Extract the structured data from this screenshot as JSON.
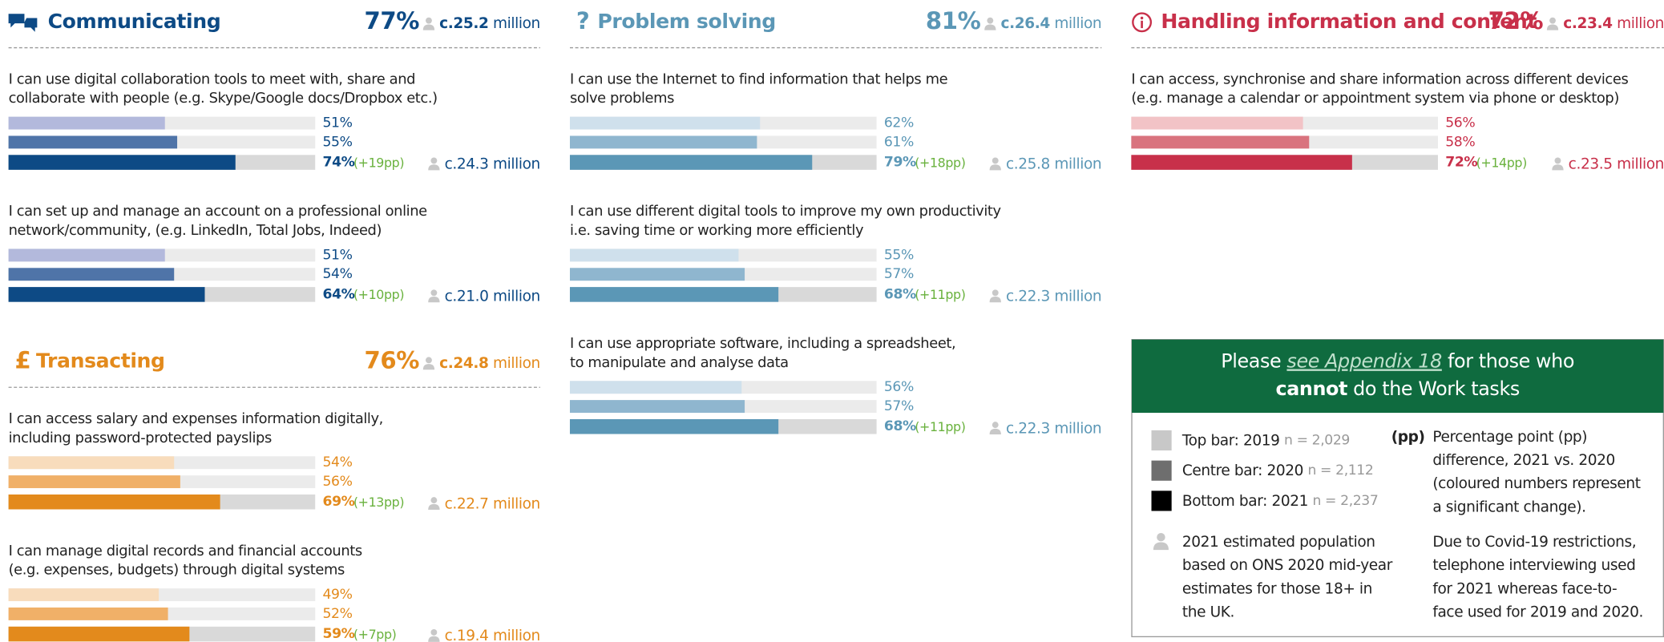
{
  "xlim": [
    0,
    100
  ],
  "sections": [
    {
      "title": "Communicating",
      "percent": "77%",
      "population": "c.25.2",
      "unit": "million",
      "color": "#0d4a85",
      "label_color": "#0d4a85",
      "bar_colors": [
        "#b3b9dc",
        "#4f74a8",
        "#0d4a85"
      ],
      "items": [
        {
          "label_lines": [
            "I can use digital collaboration tools to meet with, share and",
            "collaborate with people (e.g. Skype/Google docs/Dropbox etc.)"
          ],
          "values": [
            51,
            55,
            74
          ],
          "value_labels": [
            "51%",
            "55%",
            "74%"
          ],
          "change": "(+19pp)",
          "population": "c.24.3 million"
        },
        {
          "label_lines": [
            "I can set up and manage an account on a professional online",
            "network/community, (e.g. LinkedIn, Total Jobs, Indeed)"
          ],
          "values": [
            51,
            54,
            64
          ],
          "value_labels": [
            "51%",
            "54%",
            "64%"
          ],
          "change": "(+10pp)",
          "population": "c.21.0 million"
        }
      ]
    },
    {
      "title": "Transacting",
      "icon": "£",
      "percent": "76%",
      "population": "c.24.8",
      "unit": "million",
      "color": "#e38a1c",
      "label_color": "#e38a1c",
      "bar_colors": [
        "#f8dcbc",
        "#f0b068",
        "#e38a1c"
      ],
      "items": [
        {
          "label_lines": [
            "I can access salary and expenses information digitally,",
            "including password-protected payslips"
          ],
          "values": [
            54,
            56,
            69
          ],
          "value_labels": [
            "54%",
            "56%",
            "69%"
          ],
          "change": "(+13pp)",
          "population": "c.22.7 million"
        },
        {
          "label_lines": [
            "I can manage digital records and financial accounts",
            "(e.g. expenses, budgets) through digital systems"
          ],
          "values": [
            49,
            52,
            59
          ],
          "value_labels": [
            "49%",
            "52%",
            "59%"
          ],
          "change": "(+7pp)",
          "population": "c.19.4 million"
        }
      ]
    },
    {
      "title": "Problem solving",
      "icon": "?",
      "percent": "81%",
      "population": "c.26.4",
      "unit": "million",
      "color": "#5b97b6",
      "label_color": "#5b97b6",
      "bar_colors": [
        "#cfe0ec",
        "#8fb6cf",
        "#5b97b6"
      ],
      "items": [
        {
          "label_lines": [
            "I can use the Internet to find information that helps me",
            "solve problems"
          ],
          "values": [
            62,
            61,
            79
          ],
          "value_labels": [
            "62%",
            "61%",
            "79%"
          ],
          "change": "(+18pp)",
          "population": "c.25.8 million"
        },
        {
          "label_lines": [
            "I can use different digital tools to improve my own productivity",
            "i.e. saving time or working more efficiently"
          ],
          "values": [
            55,
            57,
            68
          ],
          "value_labels": [
            "55%",
            "57%",
            "68%"
          ],
          "change": "(+11pp)",
          "population": "c.22.3 million"
        },
        {
          "label_lines": [
            "I can use appropriate software, including a spreadsheet,",
            "to manipulate and analyse data"
          ],
          "values": [
            56,
            57,
            68
          ],
          "value_labels": [
            "56%",
            "57%",
            "68%"
          ],
          "change": "(+11pp)",
          "population": "c.22.3 million"
        }
      ]
    },
    {
      "title": "Handling information and content",
      "percent": "72%",
      "population": "c.23.4",
      "unit": "million",
      "color": "#c8304a",
      "label_color": "#c8304a",
      "bar_colors": [
        "#f2c3c6",
        "#d9737e",
        "#c8304a"
      ],
      "items": [
        {
          "label_lines": [
            "I can access, synchronise and share information across different devices",
            "(e.g. manage a calendar or appointment system via phone or desktop)"
          ],
          "values": [
            56,
            58,
            72
          ],
          "value_labels": [
            "56%",
            "58%",
            "72%"
          ],
          "change": "(+14pp)",
          "population": "c.23.5 million"
        }
      ]
    }
  ],
  "legend": {
    "note_parts": [
      "Please ",
      "see Appendix 18",
      " for those who",
      "cannot",
      " do the Work tasks"
    ],
    "bars": [
      {
        "label": "Top bar: 2019",
        "n": "n = 2,029",
        "color": "#c8c8c8"
      },
      {
        "label": "Centre bar: 2020",
        "n": "n = 2,112",
        "color": "#6e6e6e"
      },
      {
        "label": "Bottom bar: 2021",
        "n": "n = 2,237",
        "color": "#000000"
      }
    ],
    "population_lines": [
      "2021 estimated population",
      "based on ONS 2020 mid-year",
      "estimates for those 18+ in",
      "the UK."
    ],
    "pp_key": "(pp)",
    "pp_lines": [
      "Percentage point (pp)",
      "difference, 2021 vs. 2020",
      "(coloured numbers represent",
      "a significant change)."
    ],
    "covid_lines": [
      "Due to Covid-19 restrictions,",
      "telephone interviewing used",
      "for 2021 whereas face-to-",
      "face used for 2019 and 2020."
    ]
  }
}
